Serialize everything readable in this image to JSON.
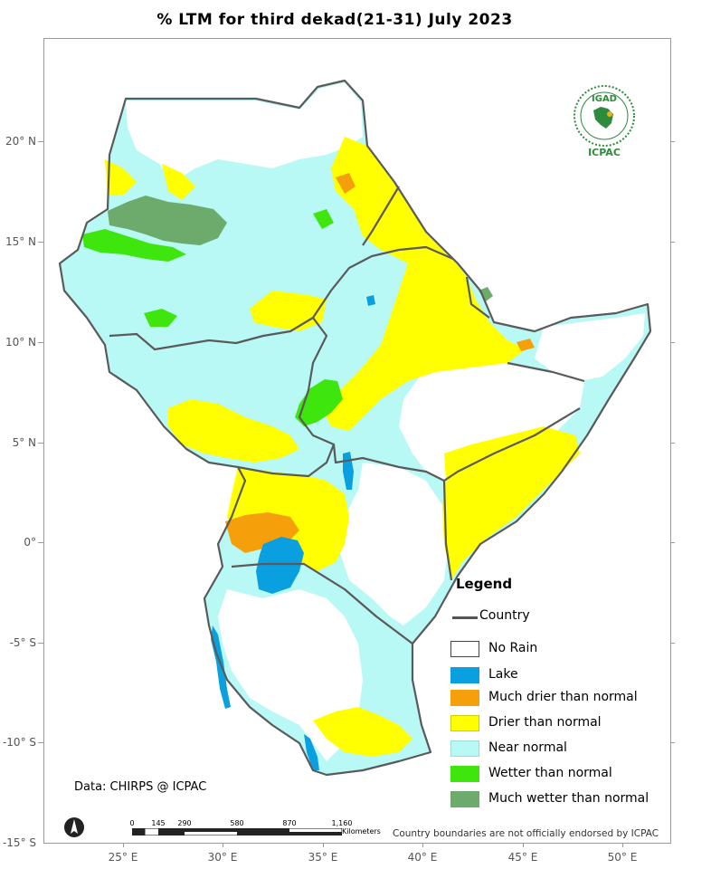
{
  "title": "% LTM   for  third dekad(21-31)  July  2023",
  "latitude_labels": [
    "20° N",
    "15° N",
    "10° N",
    "5° N",
    "0°",
    "-5° S",
    "-10° S",
    "-15° S"
  ],
  "longitude_labels": [
    "25° E",
    "30° E",
    "35° E",
    "40° E",
    "45° E",
    "50° E"
  ],
  "legend": {
    "title": "Legend",
    "country_label": "Country",
    "items": [
      {
        "label": "No Rain",
        "color": "#ffffff"
      },
      {
        "label": "Lake",
        "color": "#0aa0e0"
      },
      {
        "label": "Much drier than normal",
        "color": "#f5a00a"
      },
      {
        "label": "Drier than normal",
        "color": "#ffff00"
      },
      {
        "label": "Near normal",
        "color": "#b8f8f5"
      },
      {
        "label": "Wetter than normal",
        "color": "#3ee60e"
      },
      {
        "label": "Much wetter than normal",
        "color": "#6cab6c"
      }
    ]
  },
  "scale_bar": {
    "ticks": [
      "0",
      "145",
      "290",
      "580",
      "870",
      "1,160"
    ],
    "unit": "Kilometers"
  },
  "credit": "Data: CHIRPS @ ICPAC",
  "disclaimer": "Country boundaries are not officially endorsed by ICPAC",
  "logo": {
    "top_text": "IGAD",
    "bottom_text": "ICPAC"
  },
  "boundary_color": "#5a5a5a"
}
